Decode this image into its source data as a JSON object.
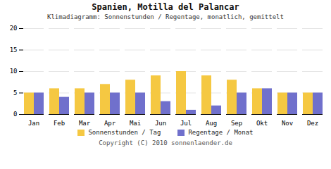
{
  "chart_data": {
    "type": "bar",
    "title": "Spanien, Motilla del Palancar",
    "subtitle": "Klimadiagramm: Sonnenstunden / Regentage, monatlich, gemittelt",
    "categories": [
      "Jan",
      "Feb",
      "Mar",
      "Apr",
      "Mai",
      "Jun",
      "Jul",
      "Aug",
      "Sep",
      "Okt",
      "Nov",
      "Dez"
    ],
    "series": [
      {
        "name": "Sonnenstunden / Tag",
        "color": "#F5C842",
        "values": [
          5,
          6,
          6,
          7,
          8,
          9,
          10,
          9,
          8,
          6,
          5,
          5
        ]
      },
      {
        "name": "Regentage / Monat",
        "color": "#7070CC",
        "values": [
          5,
          4,
          5,
          5,
          5,
          3,
          1,
          2,
          5,
          6,
          5,
          5
        ]
      }
    ],
    "ylim": [
      0,
      20
    ],
    "yticks": [
      0,
      5,
      10,
      15,
      20
    ],
    "grid": true,
    "legend": "bottom",
    "annotations": [
      "Copyright (C) 2010 sonnenlaender.de"
    ]
  }
}
